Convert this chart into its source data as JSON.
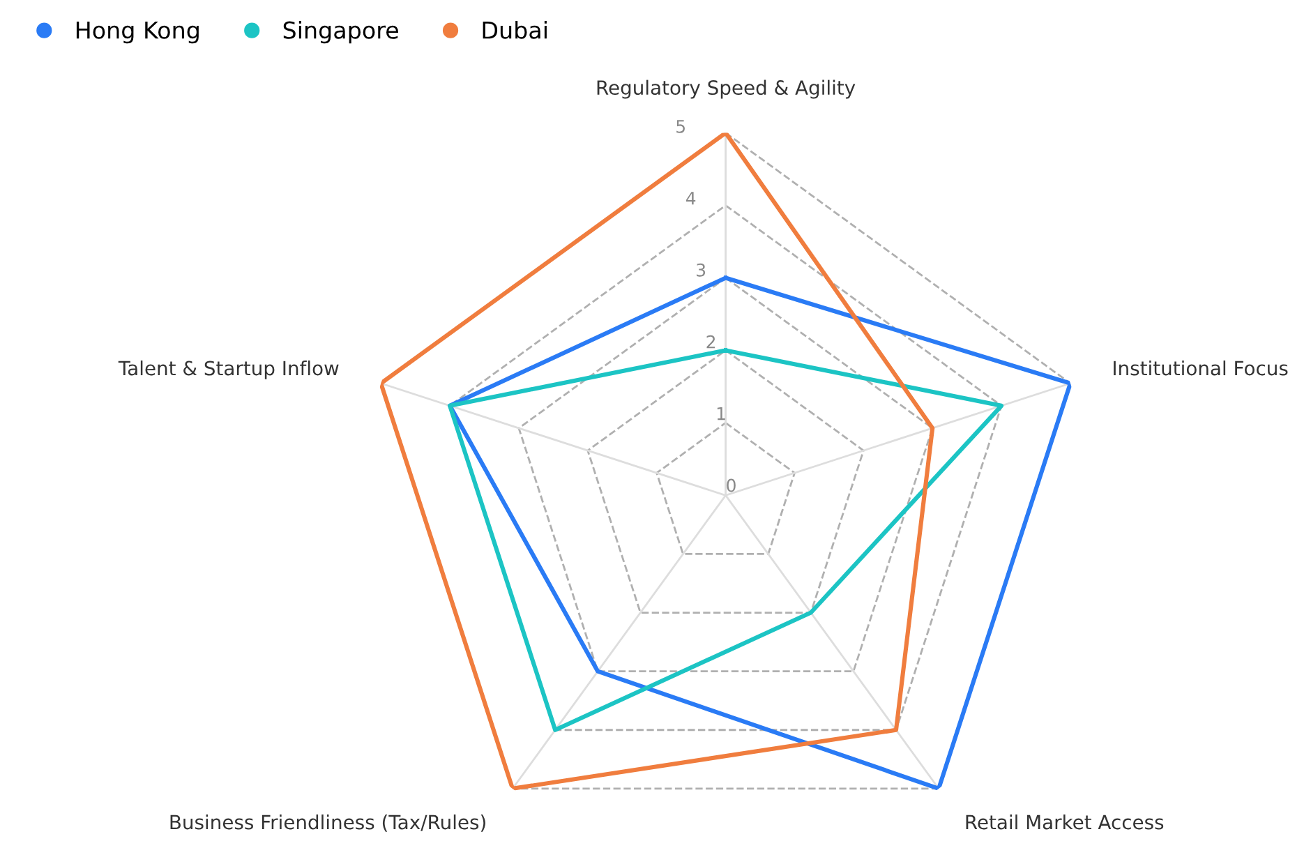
{
  "chart_data": {
    "type": "radar",
    "categories": [
      "Regulatory Speed & Agility",
      "Institutional Focus",
      "Retail Market Access",
      "Business Friendliness (Tax/Rules)",
      "Talent & Startup Inflow"
    ],
    "series": [
      {
        "name": "Hong Kong",
        "color": "#2a7bf5",
        "values": [
          3,
          5,
          5,
          3,
          4
        ]
      },
      {
        "name": "Singapore",
        "color": "#1cc4c4",
        "values": [
          2,
          4,
          2,
          4,
          4
        ]
      },
      {
        "name": "Dubai",
        "color": "#f07d3e",
        "values": [
          5,
          3,
          4,
          5,
          5
        ]
      }
    ],
    "ylim": [
      0,
      5
    ],
    "yticks": [
      0,
      1,
      2,
      3,
      4,
      5
    ],
    "grid": true,
    "legend": "top left"
  }
}
